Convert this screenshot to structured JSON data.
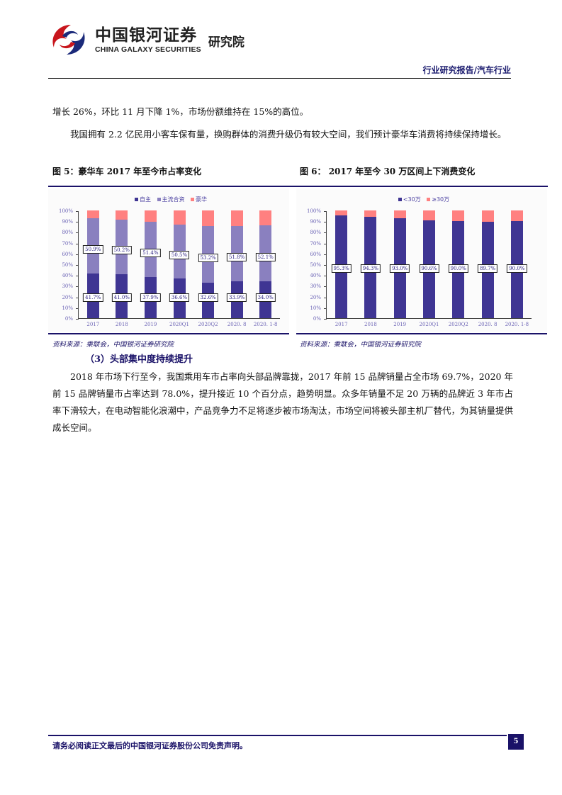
{
  "header": {
    "logo_cn": "中国银河证券",
    "logo_en": "CHINA GALAXY SECURITIES",
    "logo_inst": "研究院",
    "report_type": "行业研究报告/汽车行业"
  },
  "body": {
    "para1": "增长 26%，环比 11 月下降 1%，市场份额维持在 15%的高位。",
    "para2": "我国拥有 2.2 亿民用小客车保有量，换购群体的消费升级仍有较大空间，我们预计豪华车消费将持续保持增长。",
    "section_heading": "（3）头部集中度持续提升",
    "para3": "2018 年市场下行至今，我国乘用车市占率向头部品牌靠拢，2017 年前 15 品牌销量占全市场 69.7%，2020 年前 15 品牌销量市占率达到 78.0%，提升接近 10 个百分点，趋势明显。众多年销量不足 20 万辆的品牌近 3 年市占率下滑较大，在电动智能化浪潮中，产品竞争力不足将逐步被市场淘汰，市场空间将被头部主机厂替代，为其销量提供成长空间。"
  },
  "figures": {
    "fig5_title": "图 5：豪华车 2017 年至今市占率变化",
    "fig6_title": "图 6：  2017 年至今 30 万区间上下消费变化",
    "fig5_source": "资料来源：乘联会，中国银河证券研究院",
    "fig6_source": "资料来源：乘联会，中国银河证券研究院"
  },
  "chart_data": [
    {
      "type": "bar",
      "stacked": true,
      "title": "豪华车 2017 年至今市占率变化",
      "categories": [
        "2017",
        "2018",
        "2019",
        "2020Q1",
        "2020Q2",
        "2020.8",
        "2020.1-8"
      ],
      "series": [
        {
          "name": "自主",
          "color": "#3f3593",
          "values": [
            41.7,
            41.0,
            37.9,
            36.6,
            32.6,
            33.9,
            34.0
          ]
        },
        {
          "name": "主流合资",
          "color": "#8a80bf",
          "values": [
            50.9,
            50.2,
            51.4,
            50.5,
            53.2,
            51.8,
            52.1
          ]
        },
        {
          "name": "豪华",
          "color": "#ff8080",
          "values": [
            7.4,
            8.8,
            10.7,
            12.9,
            14.2,
            14.3,
            13.9
          ]
        }
      ],
      "labels_bottom": [
        "41.7%",
        "41.0%",
        "37.9%",
        "36.6%",
        "32.6%",
        "33.9%",
        "34.0%"
      ],
      "labels_mid": [
        "50.9%",
        "50.2%",
        "51.4%",
        "50.5%",
        "53.2%",
        "51.8%",
        "52.1%"
      ],
      "yticks": [
        "0%",
        "10%",
        "20%",
        "30%",
        "40%",
        "50%",
        "60%",
        "70%",
        "80%",
        "90%",
        "100%"
      ],
      "ylim": [
        0,
        100
      ],
      "xlabel": "",
      "ylabel": "",
      "legend_position": "top"
    },
    {
      "type": "bar",
      "stacked": true,
      "title": "2017 年至今 30 万区间上下消费变化",
      "categories": [
        "2017",
        "2018",
        "2019",
        "2020Q1",
        "2020Q2",
        "2020.8",
        "2020.1-8"
      ],
      "series": [
        {
          "name": "<30万",
          "color": "#3f3593",
          "values": [
            95.3,
            94.3,
            93.0,
            90.6,
            90.0,
            89.7,
            90.0
          ]
        },
        {
          "name": "≥30万",
          "color": "#ff8080",
          "values": [
            4.7,
            5.7,
            7.0,
            9.4,
            10.0,
            10.3,
            10.0
          ]
        }
      ],
      "labels_bottom": [
        "95.3%",
        "94.3%",
        "93.0%",
        "90.6%",
        "90.0%",
        "89.7%",
        "90.0%"
      ],
      "yticks": [
        "0%",
        "10%",
        "20%",
        "30%",
        "40%",
        "50%",
        "60%",
        "70%",
        "80%",
        "90%",
        "100%"
      ],
      "ylim": [
        0,
        100
      ],
      "xlabel": "",
      "ylabel": "",
      "legend_position": "top"
    }
  ],
  "footer": {
    "disclaimer": "请务必阅读正文最后的中国银河证券股份公司免责声明。",
    "page": "5"
  }
}
